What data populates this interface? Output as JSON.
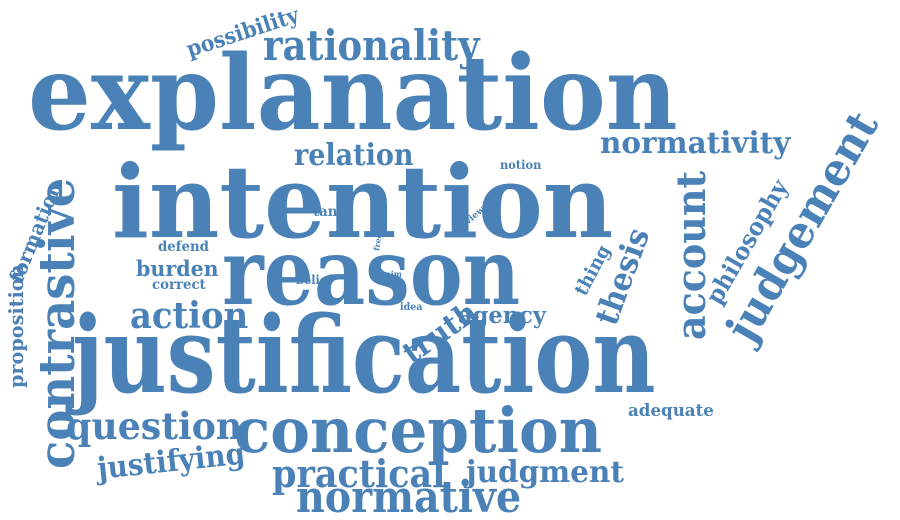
{
  "colors": {
    "word": "#4a81b6",
    "background": "#ffffff"
  },
  "words": {
    "explanation": "explanation",
    "intention": "intention",
    "reason": "reason",
    "justification": "justification",
    "conception": "conception",
    "contrastive": "contrastive",
    "rationality": "rationality",
    "normativity": "normativity",
    "judgement": "judgement",
    "account": "account",
    "normative": "normative",
    "practical": "practical",
    "judgment": "judgment",
    "question": "question",
    "justifying": "justifying",
    "action": "action",
    "relation": "relation",
    "possibility": "possibility",
    "thesis": "thesis",
    "philosophy": "philosophy",
    "formation": "formation",
    "proposition": "proposition",
    "agency": "agency",
    "truth": "truth",
    "burden": "burden",
    "defend": "defend",
    "correct": "correct",
    "thing": "thing",
    "adequate": "adequate",
    "tanto": "tanto",
    "belief": "belief",
    "notion": "notion",
    "idea": "idea",
    "aim": "aim",
    "view": "view",
    "free": "free"
  }
}
